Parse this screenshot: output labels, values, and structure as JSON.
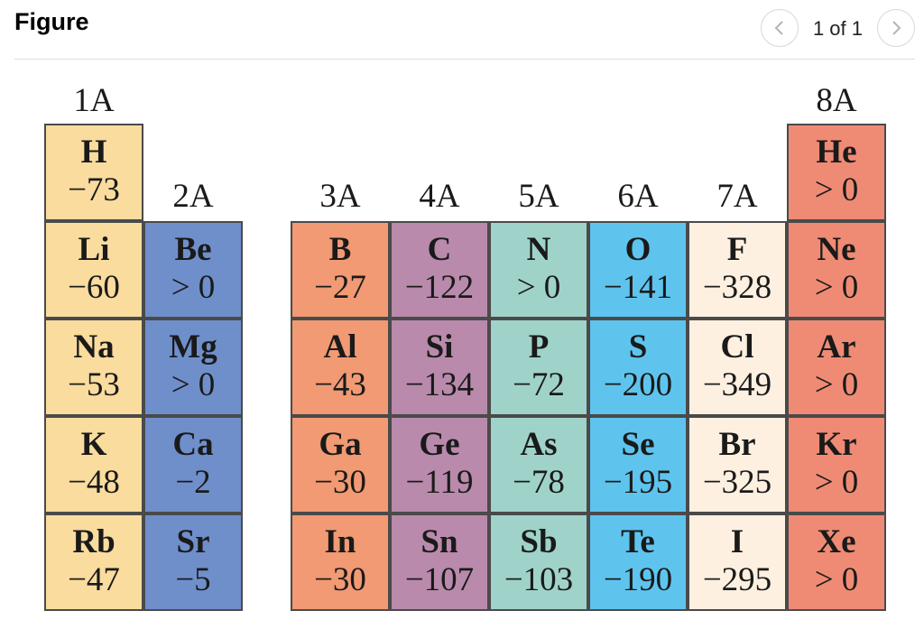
{
  "header": {
    "title": "Figure",
    "pager_text": "1 of 1",
    "prev_icon": "chevron-left-icon",
    "next_icon": "chevron-right-icon"
  },
  "colors": {
    "group_1A": "#f9dc9e",
    "group_2A": "#6f8fcb",
    "group_3A": "#f19a73",
    "group_4A": "#b98aab",
    "group_5A": "#9fd3c9",
    "group_6A": "#5ec4ee",
    "group_7A": "#fdf0e0",
    "group_8A": "#ef8b74"
  },
  "groups": [
    {
      "label": "1A",
      "color_key": "group_1A",
      "col": 0,
      "label_row": -1,
      "elements": [
        {
          "symbol": "H",
          "value": "−73",
          "row": 0
        },
        {
          "symbol": "Li",
          "value": "−60",
          "row": 1
        },
        {
          "symbol": "Na",
          "value": "−53",
          "row": 2
        },
        {
          "symbol": "K",
          "value": "−48",
          "row": 3
        },
        {
          "symbol": "Rb",
          "value": "−47",
          "row": 4
        }
      ]
    },
    {
      "label": "2A",
      "color_key": "group_2A",
      "col": 1,
      "label_row": 0,
      "elements": [
        {
          "symbol": "Be",
          "value": "> 0",
          "row": 1
        },
        {
          "symbol": "Mg",
          "value": "> 0",
          "row": 2
        },
        {
          "symbol": "Ca",
          "value": "−2",
          "row": 3
        },
        {
          "symbol": "Sr",
          "value": "−5",
          "row": 4
        }
      ]
    },
    {
      "label": "3A",
      "color_key": "group_3A",
      "col": 2,
      "label_row": 0,
      "elements": [
        {
          "symbol": "B",
          "value": "−27",
          "row": 1
        },
        {
          "symbol": "Al",
          "value": "−43",
          "row": 2
        },
        {
          "symbol": "Ga",
          "value": "−30",
          "row": 3
        },
        {
          "symbol": "In",
          "value": "−30",
          "row": 4
        }
      ]
    },
    {
      "label": "4A",
      "color_key": "group_4A",
      "col": 3,
      "label_row": 0,
      "elements": [
        {
          "symbol": "C",
          "value": "−122",
          "row": 1
        },
        {
          "symbol": "Si",
          "value": "−134",
          "row": 2
        },
        {
          "symbol": "Ge",
          "value": "−119",
          "row": 3
        },
        {
          "symbol": "Sn",
          "value": "−107",
          "row": 4
        }
      ]
    },
    {
      "label": "5A",
      "color_key": "group_5A",
      "col": 4,
      "label_row": 0,
      "elements": [
        {
          "symbol": "N",
          "value": "> 0",
          "row": 1
        },
        {
          "symbol": "P",
          "value": "−72",
          "row": 2
        },
        {
          "symbol": "As",
          "value": "−78",
          "row": 3
        },
        {
          "symbol": "Sb",
          "value": "−103",
          "row": 4
        }
      ]
    },
    {
      "label": "6A",
      "color_key": "group_6A",
      "col": 5,
      "label_row": 0,
      "elements": [
        {
          "symbol": "O",
          "value": "−141",
          "row": 1
        },
        {
          "symbol": "S",
          "value": "−200",
          "row": 2
        },
        {
          "symbol": "Se",
          "value": "−195",
          "row": 3
        },
        {
          "symbol": "Te",
          "value": "−190",
          "row": 4
        }
      ]
    },
    {
      "label": "7A",
      "color_key": "group_7A",
      "col": 6,
      "label_row": 0,
      "elements": [
        {
          "symbol": "F",
          "value": "−328",
          "row": 1
        },
        {
          "symbol": "Cl",
          "value": "−349",
          "row": 2
        },
        {
          "symbol": "Br",
          "value": "−325",
          "row": 3
        },
        {
          "symbol": "I",
          "value": "−295",
          "row": 4
        }
      ]
    },
    {
      "label": "8A",
      "color_key": "group_8A",
      "col": 7,
      "label_row": -1,
      "elements": [
        {
          "symbol": "He",
          "value": "> 0",
          "row": 0
        },
        {
          "symbol": "Ne",
          "value": "> 0",
          "row": 1
        },
        {
          "symbol": "Ar",
          "value": "> 0",
          "row": 2
        },
        {
          "symbol": "Kr",
          "value": "> 0",
          "row": 3
        },
        {
          "symbol": "Xe",
          "value": "> 0",
          "row": 4
        }
      ]
    }
  ]
}
